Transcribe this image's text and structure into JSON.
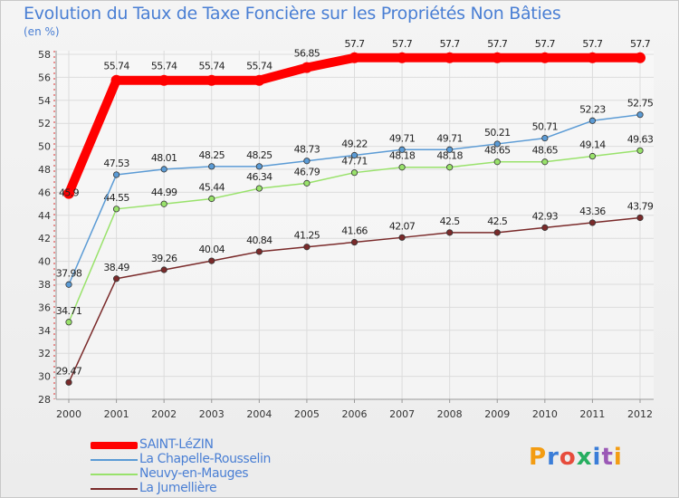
{
  "title": "Evolution du Taux de Taxe Foncière sur les Propriétés Non Bâties",
  "unit_label": "(en %)",
  "logo_text": "Proxiti",
  "chart_data": {
    "type": "line",
    "title": "Evolution du Taux de Taxe Foncière sur les Propriétés Non Bâties",
    "ylabel": "(en %)",
    "xlabel": "",
    "ylim": [
      28,
      58
    ],
    "yticks": [
      28,
      30,
      32,
      34,
      36,
      38,
      40,
      42,
      44,
      46,
      48,
      50,
      52,
      54,
      56,
      58
    ],
    "x": [
      "2000",
      "2001",
      "2002",
      "2003",
      "2004",
      "2005",
      "2006",
      "2007",
      "2008",
      "2009",
      "2010",
      "2011",
      "2012"
    ],
    "series": [
      {
        "name": "SAINT-LéZIN",
        "color": "#ff0000",
        "values": [
          45.9,
          55.74,
          55.74,
          55.74,
          55.74,
          56.85,
          57.7,
          57.7,
          57.7,
          57.7,
          57.7,
          57.7,
          57.7
        ],
        "labels": [
          "45.9",
          "55.74",
          "55.74",
          "55.74",
          "55.74",
          "56.85",
          "57.7",
          "57.7",
          "57.7",
          "57.7",
          "57.7",
          "57.7",
          "57.7"
        ]
      },
      {
        "name": "La Chapelle-Rousselin",
        "color": "#5b9bd5",
        "values": [
          37.98,
          47.53,
          48.01,
          48.25,
          48.25,
          48.73,
          49.22,
          49.71,
          49.71,
          50.21,
          50.71,
          52.23,
          52.75
        ],
        "labels": [
          "37.98",
          "47.53",
          "48.01",
          "48.25",
          "48.25",
          "48.73",
          "49.22",
          "49.71",
          "49.71",
          "50.21",
          "50.71",
          "52.23",
          "52.75"
        ]
      },
      {
        "name": "Neuvy-en-Mauges",
        "color": "#99e26b",
        "values": [
          34.71,
          44.55,
          44.99,
          45.44,
          46.34,
          46.79,
          47.71,
          48.18,
          48.18,
          48.65,
          48.65,
          49.14,
          49.63
        ],
        "labels": [
          "34.71",
          "44.55",
          "44.99",
          "45.44",
          "46.34",
          "46.79",
          "47.71",
          "48.18",
          "48.18",
          "48.65",
          "48.65",
          "49.14",
          "49.63"
        ]
      },
      {
        "name": "La Jumellière",
        "color": "#7a2a2a",
        "values": [
          29.47,
          38.49,
          39.26,
          40.04,
          40.84,
          41.25,
          41.66,
          42.07,
          42.5,
          42.5,
          42.93,
          43.36,
          43.79
        ],
        "labels": [
          "29.47",
          "38.49",
          "39.26",
          "40.04",
          "40.84",
          "41.25",
          "41.66",
          "42.07",
          "42.5",
          "42.5",
          "42.93",
          "43.36",
          "43.79"
        ]
      }
    ],
    "grid": true,
    "legend": "bottom-left"
  }
}
